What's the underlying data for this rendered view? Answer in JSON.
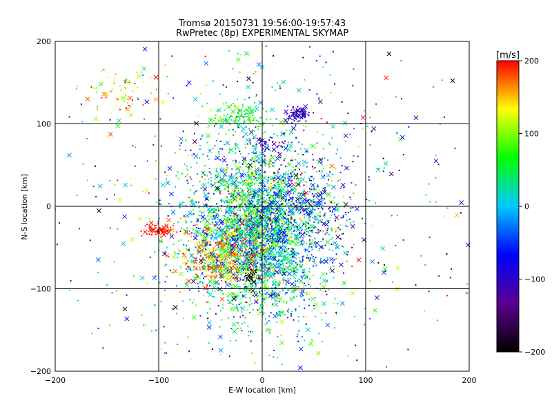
{
  "chart_data": {
    "type": "scatter",
    "title": "Tromsø 20150731 19:56:00-19:57:43",
    "subtitle": "RwPretec (8p) EXPERIMENTAL SKYMAP",
    "xlabel": "E-W location [km]",
    "ylabel": "N-S location [km]",
    "xlim": [
      -200,
      200
    ],
    "ylim": [
      -200,
      200
    ],
    "xticks": [
      -200,
      -100,
      0,
      100,
      200
    ],
    "yticks": [
      -200,
      -100,
      0,
      100,
      200
    ],
    "grid": true,
    "colorbar": {
      "label": "[m/s]",
      "range": [
        -200,
        200
      ],
      "ticks": [
        200,
        100,
        0,
        -100,
        -200
      ],
      "colors": [
        "#000000",
        "#5a0090",
        "#0000ff",
        "#00c8ff",
        "#00ff00",
        "#ffff00",
        "#ff0000"
      ]
    },
    "markers": [
      "dot",
      "x"
    ],
    "clusters": [
      {
        "x": -5,
        "y": -30,
        "sx": 32,
        "sy": 50,
        "v": 20,
        "vs": 70,
        "n": 3200
      },
      {
        "x": -20,
        "y": 110,
        "sx": 15,
        "sy": 8,
        "v": 60,
        "vs": 40,
        "n": 140
      },
      {
        "x": 35,
        "y": 112,
        "sx": 6,
        "sy": 5,
        "v": -110,
        "vs": 15,
        "n": 60
      },
      {
        "x": -100,
        "y": -28,
        "sx": 7,
        "sy": 4,
        "v": 195,
        "vs": 10,
        "n": 70
      },
      {
        "x": -135,
        "y": 140,
        "sx": 18,
        "sy": 18,
        "v": 150,
        "vs": 50,
        "n": 70
      },
      {
        "x": 5,
        "y": 75,
        "sx": 8,
        "sy": 5,
        "v": -100,
        "vs": 20,
        "n": 40
      },
      {
        "x": -10,
        "y": -85,
        "sx": 5,
        "sy": 4,
        "v": -190,
        "vs": 12,
        "n": 30
      },
      {
        "x": -40,
        "y": -60,
        "sx": 22,
        "sy": 18,
        "v": 150,
        "vs": 40,
        "n": 350
      },
      {
        "x": 40,
        "y": -5,
        "sx": 25,
        "sy": 30,
        "v": -80,
        "vs": 50,
        "n": 250
      },
      {
        "x": 0,
        "y": 0,
        "sx": 110,
        "sy": 110,
        "v": 0,
        "vs": 110,
        "n": 700
      }
    ]
  }
}
